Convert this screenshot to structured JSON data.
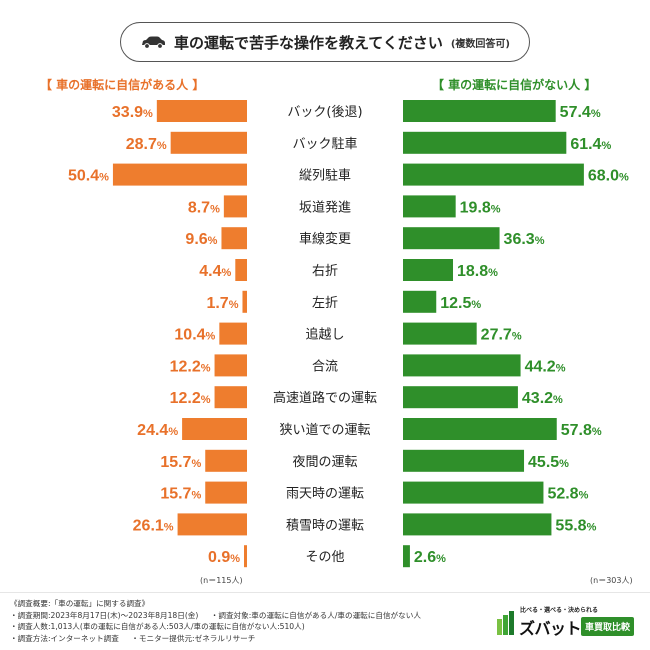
{
  "title": {
    "main": "車の運転で苦手な操作を教えてください",
    "sub": "(複数回答可)",
    "icon": "car-icon"
  },
  "group_left_label": "【 車の運転に自信がある人 】",
  "group_right_label": "【 車の運転に自信がない人 】",
  "n_left": "(n＝115人)",
  "n_right": "(n＝303人)",
  "colors": {
    "left": "#ee7d2e",
    "right": "#2f8f2a",
    "left_text": "#e8712a",
    "right_text": "#2f8f2a"
  },
  "chart_data": {
    "type": "bar",
    "orientation": "horizontal-butterfly",
    "title": "車の運転で苦手な操作を教えてください(複数回答可)",
    "unit": "%",
    "categories": [
      "バック(後退)",
      "バック駐車",
      "縦列駐車",
      "坂道発進",
      "車線変更",
      "右折",
      "左折",
      "追越し",
      "合流",
      "高速道路での運転",
      "狭い道での運転",
      "夜間の運転",
      "雨天時の運転",
      "積雪時の運転",
      "その他"
    ],
    "series": [
      {
        "name": "車の運転に自信がある人",
        "values": [
          33.9,
          28.7,
          50.4,
          8.7,
          9.6,
          4.4,
          1.7,
          10.4,
          12.2,
          12.2,
          24.4,
          15.7,
          15.7,
          26.1,
          0.9
        ]
      },
      {
        "name": "車の運転に自信がない人",
        "values": [
          57.4,
          61.4,
          68.0,
          19.8,
          36.3,
          18.8,
          12.5,
          27.7,
          44.2,
          43.2,
          57.8,
          45.5,
          52.8,
          55.8,
          2.6
        ]
      }
    ]
  },
  "footer": {
    "heading": "《調査概要:「車の運転」に関する調査》",
    "lines": [
      [
        "・調査期間:2023年8月17日(木)～2023年8月18日(金)",
        "・調査対象:車の運転に自信がある人/車の運転に自信がない人"
      ],
      [
        "・調査人数:1,013人(車の運転に自信がある人:503人/車の運転に自信がない人:510人)"
      ],
      [
        "・調査方法:インターネット調査",
        "・モニター提供元:ゼネラルリサーチ"
      ]
    ]
  },
  "logo": {
    "slogan": "比べる・選べる・決められる",
    "brand": "ズバット",
    "tag": "車買取比較"
  }
}
